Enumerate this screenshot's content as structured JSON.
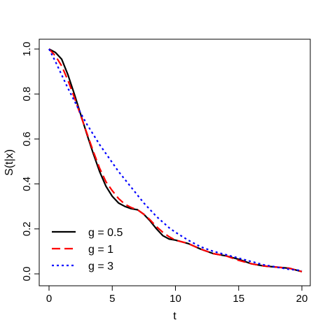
{
  "chart_data": {
    "type": "line",
    "title": "",
    "xlabel": "t",
    "ylabel": "S(t|x)",
    "xlim": [
      0,
      20
    ],
    "ylim": [
      0,
      1.0
    ],
    "xticks": [
      0,
      5,
      10,
      15,
      20
    ],
    "xtick_labels": [
      "0",
      "5",
      "10",
      "15",
      "20"
    ],
    "yticks": [
      0.0,
      0.2,
      0.4,
      0.6,
      0.8,
      1.0
    ],
    "ytick_labels": [
      "0.0",
      "0.2",
      "0.4",
      "0.6",
      "0.8",
      "1.0"
    ],
    "grid": false,
    "legend_position": "bottom-left",
    "series": [
      {
        "name": "g = 0.5",
        "color": "#000000",
        "linestyle": "solid",
        "x": [
          0,
          0.5,
          1,
          1.5,
          2,
          2.5,
          3,
          3.5,
          4,
          4.5,
          5,
          5.5,
          6,
          6.5,
          7,
          7.5,
          8,
          8.5,
          9,
          9.5,
          10,
          11,
          12,
          13,
          14,
          15,
          16,
          17,
          18,
          19,
          20
        ],
        "y": [
          1.0,
          0.985,
          0.955,
          0.885,
          0.8,
          0.71,
          0.62,
          0.535,
          0.455,
          0.39,
          0.345,
          0.315,
          0.3,
          0.29,
          0.285,
          0.265,
          0.235,
          0.2,
          0.17,
          0.155,
          0.15,
          0.135,
          0.11,
          0.09,
          0.08,
          0.065,
          0.045,
          0.035,
          0.03,
          0.025,
          0.01
        ]
      },
      {
        "name": "g = 1",
        "color": "#ff0000",
        "linestyle": "dashed",
        "x": [
          0,
          0.5,
          1,
          1.5,
          2,
          2.5,
          3,
          3.5,
          4,
          4.5,
          5,
          5.5,
          6,
          6.5,
          7,
          7.5,
          8,
          8.5,
          9,
          9.5,
          10,
          11,
          12,
          13,
          14,
          15,
          16,
          17,
          18,
          19,
          20
        ],
        "y": [
          1.0,
          0.97,
          0.925,
          0.86,
          0.785,
          0.705,
          0.625,
          0.545,
          0.47,
          0.41,
          0.37,
          0.335,
          0.31,
          0.295,
          0.285,
          0.265,
          0.24,
          0.21,
          0.185,
          0.165,
          0.15,
          0.135,
          0.11,
          0.09,
          0.08,
          0.06,
          0.045,
          0.035,
          0.03,
          0.025,
          0.01
        ]
      },
      {
        "name": "g = 3",
        "color": "#0000ff",
        "linestyle": "dotted",
        "x": [
          0,
          0.5,
          1,
          1.5,
          2,
          2.5,
          3,
          3.5,
          4,
          4.5,
          5,
          5.5,
          6,
          6.5,
          7,
          7.5,
          8,
          8.5,
          9,
          9.5,
          10,
          11,
          12,
          13,
          14,
          15,
          16,
          17,
          18,
          19,
          20
        ],
        "y": [
          1.0,
          0.945,
          0.885,
          0.825,
          0.77,
          0.715,
          0.665,
          0.62,
          0.575,
          0.535,
          0.495,
          0.455,
          0.42,
          0.385,
          0.35,
          0.315,
          0.285,
          0.255,
          0.23,
          0.205,
          0.185,
          0.15,
          0.12,
          0.1,
          0.085,
          0.07,
          0.055,
          0.04,
          0.03,
          0.02,
          0.015
        ]
      }
    ]
  }
}
